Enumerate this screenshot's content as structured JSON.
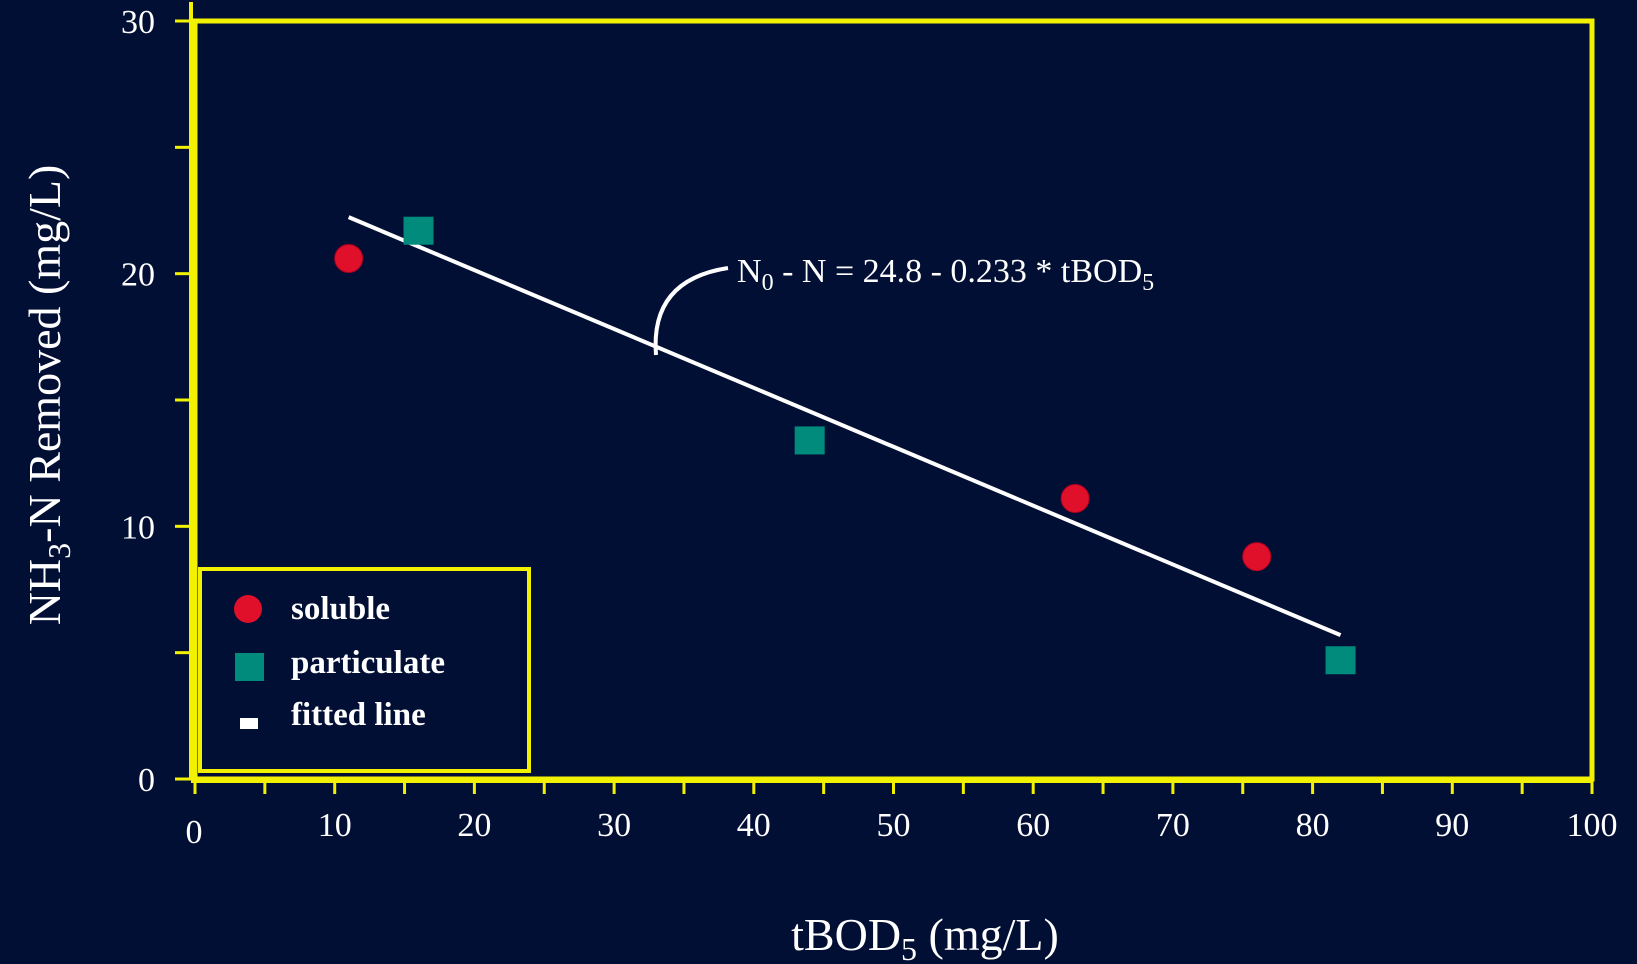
{
  "chart_data": {
    "type": "scatter",
    "xlabel": {
      "main": "tBOD",
      "sub": "5",
      "tail": " (mg/L)"
    },
    "ylabel": {
      "pre": "NH",
      "sub": "3",
      "post": "-N Removed (mg/L)"
    },
    "xlim": [
      0,
      100
    ],
    "ylim": [
      0,
      30
    ],
    "xticks": [
      0,
      10,
      20,
      30,
      40,
      50,
      60,
      70,
      80,
      90,
      100
    ],
    "xtick_labels": [
      "0",
      "10",
      "20",
      "30",
      "40",
      "50",
      "60",
      "70",
      "80",
      "90",
      "100"
    ],
    "yticks": [
      0,
      10,
      20,
      30
    ],
    "ytick_labels": [
      "0",
      "10",
      "20",
      "30"
    ],
    "x_minor_step": 5,
    "y_minor_step": 5,
    "series": [
      {
        "name": "soluble",
        "marker": "circle",
        "color": "#e0102a",
        "points": [
          {
            "x": 11,
            "y": 20.6
          },
          {
            "x": 63,
            "y": 11.1
          },
          {
            "x": 76,
            "y": 8.8
          }
        ]
      },
      {
        "name": "particulate",
        "marker": "square",
        "color": "#008b7d",
        "points": [
          {
            "x": 16,
            "y": 21.7
          },
          {
            "x": 44,
            "y": 13.4
          },
          {
            "x": 82,
            "y": 4.7
          }
        ]
      }
    ],
    "fitted_line": {
      "name": "fitted line",
      "color": "#ffffff",
      "intercept": 24.8,
      "slope": -0.233,
      "x_range": [
        11,
        82
      ]
    },
    "equation": {
      "n0": "N",
      "n0_sub": "0",
      "rest": " - N = 24.8 - 0.233 * tBOD",
      "tail_sub": "5"
    },
    "legend": {
      "position": "bottom-left",
      "items": [
        "soluble",
        "particulate",
        "fitted line"
      ]
    },
    "colors": {
      "background": "#020f35",
      "frame": "#f2f200",
      "text": "#ffffff"
    }
  }
}
